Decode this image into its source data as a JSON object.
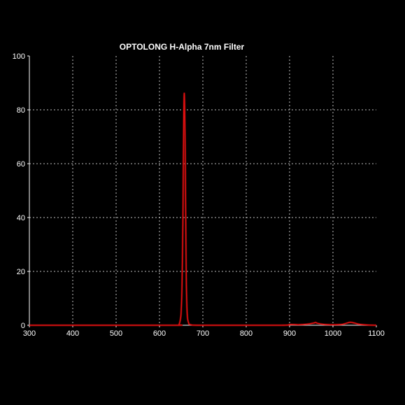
{
  "chart_data": {
    "type": "line",
    "title": "OPTOLONG H-Alpha 7nm Filter",
    "xlabel": "",
    "ylabel": "",
    "xlim": [
      300,
      1100
    ],
    "ylim": [
      0,
      100
    ],
    "x_ticks": [
      300,
      400,
      500,
      600,
      700,
      800,
      900,
      1000,
      1100
    ],
    "y_ticks": [
      0,
      20,
      40,
      60,
      80,
      100
    ],
    "grid": true,
    "background_color": "#000000",
    "axis_color": "#ffffff",
    "grid_color": "#bfbfbf",
    "series": [
      {
        "color": "#e01010",
        "x": [
          300,
          500,
          640,
          645,
          648,
          650,
          652,
          654,
          655,
          656,
          657,
          658,
          659,
          660,
          661,
          662,
          664,
          667,
          672,
          700,
          880,
          900,
          920,
          940,
          955,
          960,
          965,
          980,
          1000,
          1020,
          1030,
          1040,
          1050,
          1060,
          1080,
          1100
        ],
        "y": [
          0,
          0,
          0,
          0.3,
          2,
          5,
          15,
          38,
          60,
          78,
          86,
          82,
          70,
          50,
          30,
          15,
          4,
          1,
          0.2,
          0,
          0,
          0.3,
          0.2,
          0.4,
          0.8,
          1.0,
          0.7,
          0.3,
          0.2,
          0.3,
          0.7,
          1.1,
          0.8,
          0.4,
          0.1,
          0
        ]
      }
    ]
  }
}
